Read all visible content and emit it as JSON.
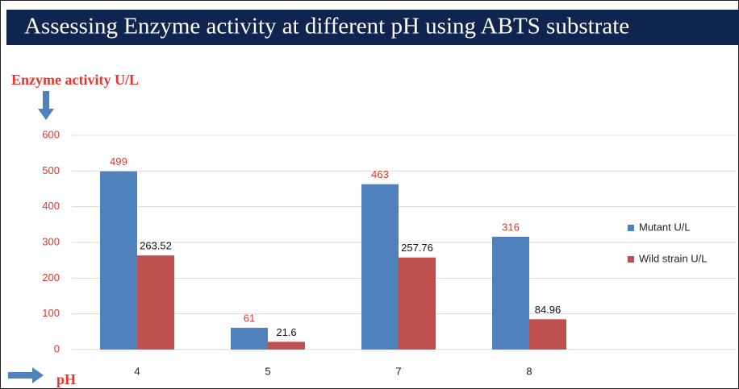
{
  "chart_data": {
    "type": "bar",
    "title": "Assessing Enzyme activity at different pH using ABTS substrate",
    "y_label": "Enzyme activity U/L",
    "x_label": "pH",
    "categories": [
      "4",
      "5",
      "7",
      "8"
    ],
    "series": [
      {
        "name": "Mutant U/L",
        "color": "#4f81bd",
        "label_color": "#e8342c",
        "values": [
          499,
          61,
          463,
          316
        ]
      },
      {
        "name": "Wild strain U/L",
        "color": "#c0504d",
        "label_color": "#111111",
        "values": [
          263.52,
          21.6,
          257.76,
          84.96
        ]
      }
    ],
    "ylim": [
      0,
      600
    ],
    "yticks": [
      0,
      100,
      200,
      300,
      400,
      500,
      600
    ],
    "grid": true,
    "legend": "right"
  }
}
